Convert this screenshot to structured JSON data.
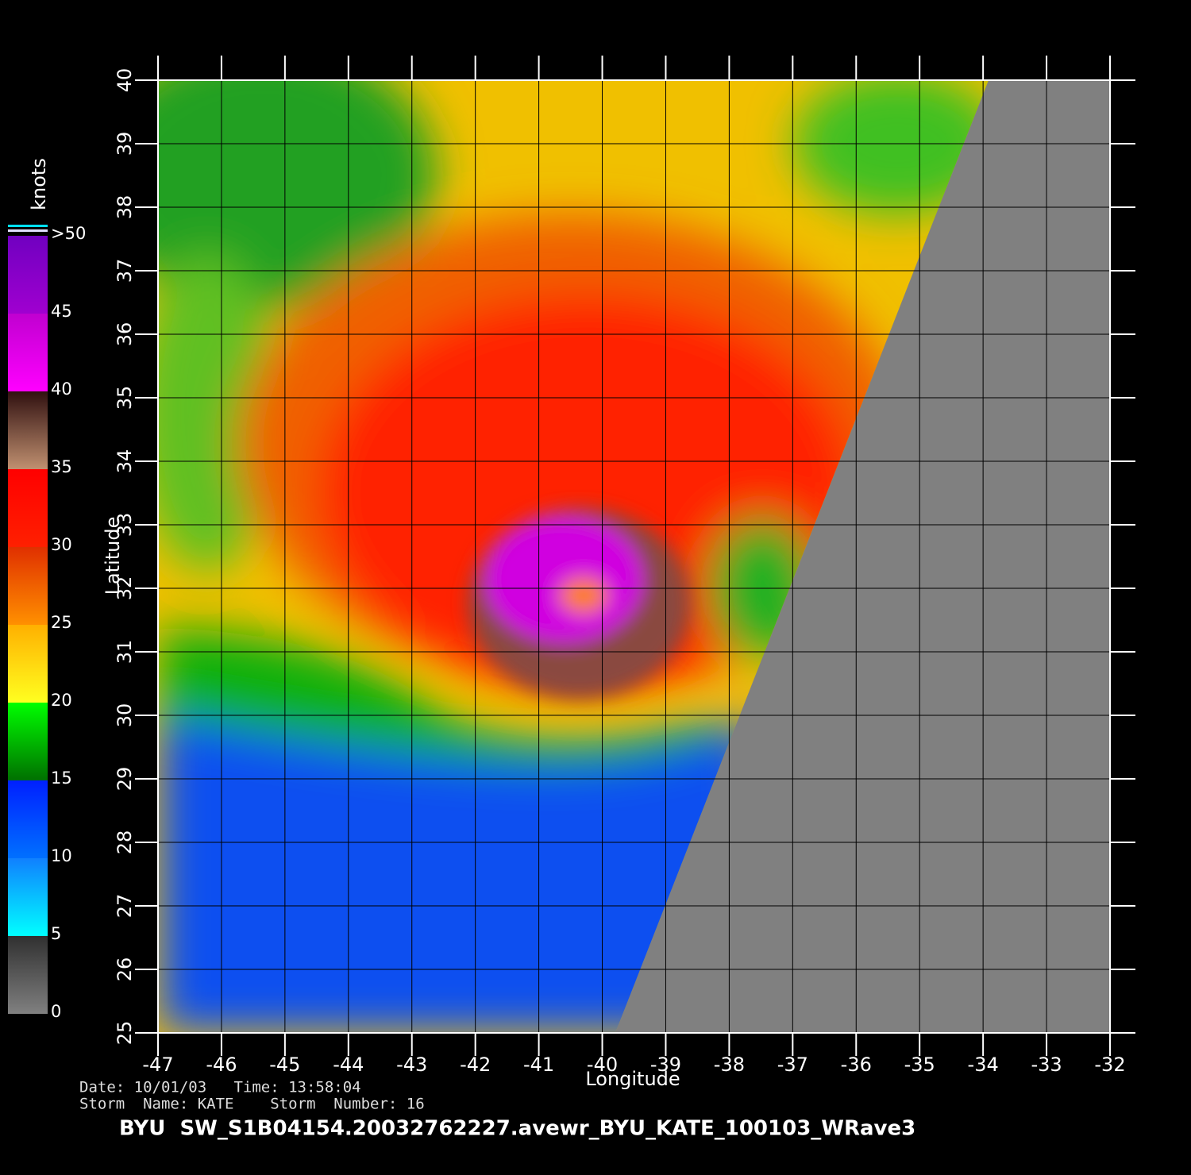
{
  "map": {
    "xlabel": "Longitude",
    "ylabel": "Latitude",
    "xlim": [
      -47,
      -32
    ],
    "ylim": [
      25,
      40
    ],
    "xticks": [
      -47,
      -46,
      -45,
      -44,
      -43,
      -42,
      -41,
      -40,
      -39,
      -38,
      -37,
      -36,
      -35,
      -34,
      -33,
      -32
    ],
    "yticks": [
      25,
      26,
      27,
      28,
      29,
      30,
      31,
      32,
      33,
      34,
      35,
      36,
      37,
      38,
      39,
      40
    ]
  },
  "colorbar": {
    "unit": "knots",
    "levels": [
      0,
      5,
      10,
      15,
      20,
      25,
      30,
      35,
      40,
      45,
      {
        "value": 50,
        "label": ">50"
      }
    ],
    "band_colors": [
      [
        "#808080",
        "#303030"
      ],
      [
        "#00ffff",
        "#1080ff"
      ],
      [
        "#0070ff",
        "#0020ff"
      ],
      [
        "#007000",
        "#00ff00"
      ],
      [
        "#ffff20",
        "#ffb000"
      ],
      [
        "#ff9000",
        "#e03000"
      ],
      [
        "#ff2000",
        "#ff0000"
      ],
      [
        "#c09070",
        "#301010"
      ],
      [
        "#ff00ff",
        "#c000d0"
      ],
      [
        "#a000d0",
        "#7000c0"
      ]
    ]
  },
  "footer": {
    "date_line": "Date: 10/01/03   Time: 13:58:04",
    "storm_line": "Storm  Name: KATE    Storm  Number: 16",
    "title": "BYU  SW_S1B04154.20032762227.avewr_BYU_KATE_100103_WRave3"
  }
}
